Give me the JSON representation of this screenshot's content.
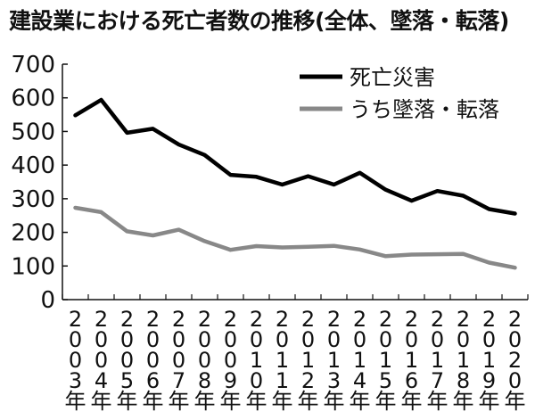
{
  "chart_data": {
    "type": "line",
    "title": "建設業における死亡者数の推移(全体、墜落・転落)",
    "categories": [
      "2003年",
      "2004年",
      "2005年",
      "2006年",
      "2007年",
      "2008年",
      "2009年",
      "2010年",
      "2011年",
      "2012年",
      "2013年",
      "2014年",
      "2015年",
      "2016年",
      "2017年",
      "2018年",
      "2019年",
      "2020年"
    ],
    "series": [
      {
        "name": "死亡災害",
        "color": "#000000",
        "values": [
          548,
          594,
          496,
          508,
          461,
          430,
          371,
          365,
          342,
          367,
          342,
          377,
          327,
          294,
          323,
          309,
          269,
          256
        ]
      },
      {
        "name": "うち墜落・転落",
        "color": "#888888",
        "values": [
          273,
          260,
          203,
          191,
          208,
          174,
          148,
          159,
          155,
          157,
          160,
          149,
          129,
          134,
          135,
          136,
          110,
          95
        ]
      }
    ],
    "yticks": [
      0,
      100,
      200,
      300,
      400,
      500,
      600,
      700
    ],
    "ylim": [
      0,
      700
    ],
    "grid": false,
    "legend_position": "top-right"
  }
}
